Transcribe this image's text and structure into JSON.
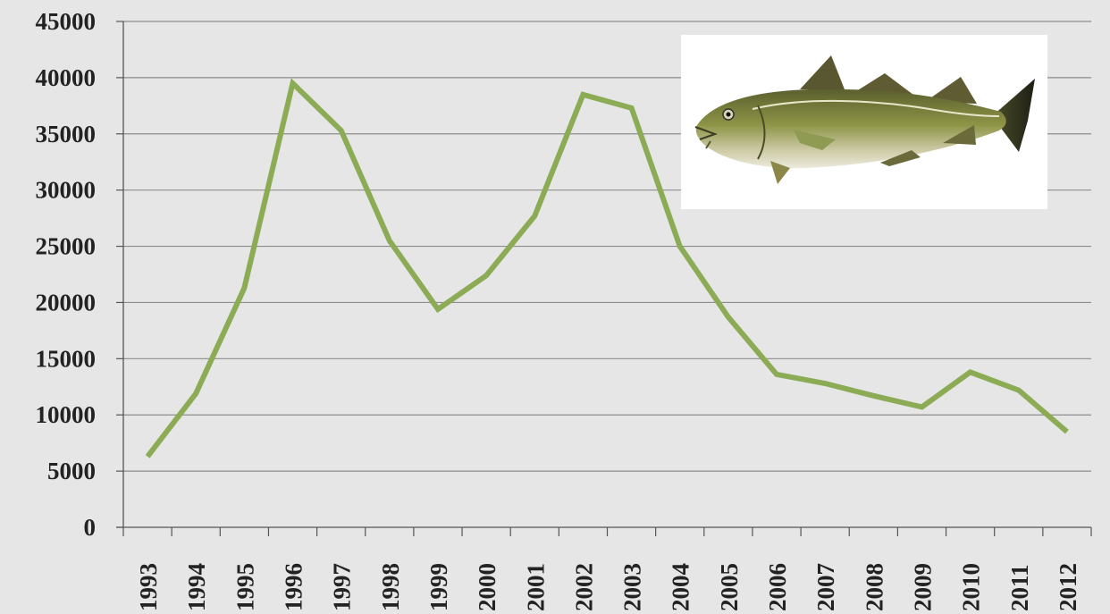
{
  "chart_data": {
    "type": "line",
    "title": "",
    "xlabel": "",
    "ylabel": "",
    "categories": [
      "1993",
      "1994",
      "1995",
      "1996",
      "1997",
      "1998",
      "1999",
      "2000",
      "2001",
      "2002",
      "2003",
      "2004",
      "2005",
      "2006",
      "2007",
      "2008",
      "2009",
      "2010",
      "2011",
      "2012"
    ],
    "series": [
      {
        "values": [
          6300,
          11900,
          21300,
          39500,
          35300,
          25500,
          19400,
          22400,
          27700,
          38500,
          37300,
          25000,
          18700,
          13600,
          12800,
          11700,
          10700,
          13800,
          12200,
          8500
        ]
      }
    ],
    "ylim": [
      0,
      45000
    ],
    "yticks": [
      0,
      5000,
      10000,
      15000,
      20000,
      25000,
      30000,
      35000,
      40000,
      45000
    ],
    "grid": true,
    "legend": "none",
    "colors": {
      "line": "#8bab55",
      "background": "#e6e6e6",
      "grid": "#8c8c8c"
    },
    "image": {
      "icon": "cod-fish-illustration"
    }
  }
}
